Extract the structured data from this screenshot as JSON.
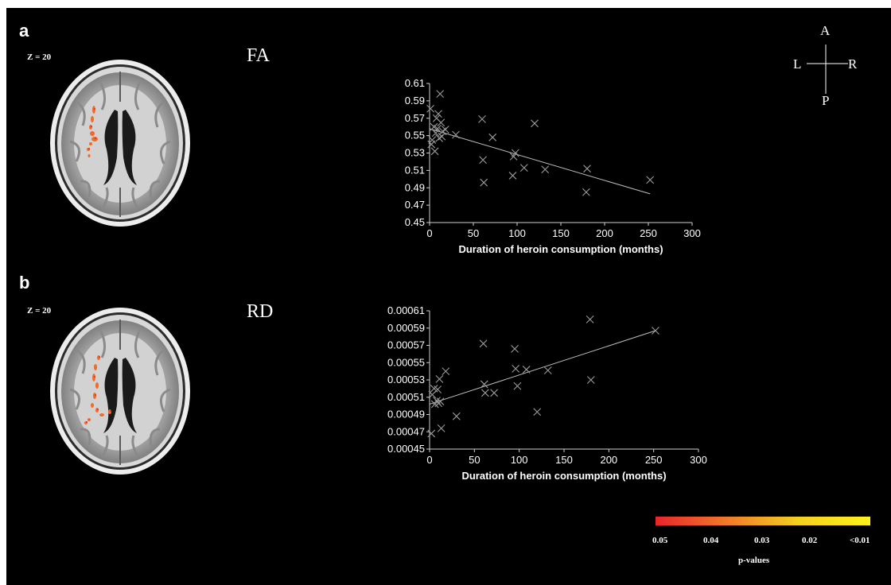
{
  "panels": [
    {
      "letter": "a",
      "slice_label": "Z = 20",
      "metric": "FA"
    },
    {
      "letter": "b",
      "slice_label": "Z = 20",
      "metric": "RD"
    }
  ],
  "orientation": {
    "anterior": "A",
    "posterior": "P",
    "left": "L",
    "right": "R"
  },
  "colorbar": {
    "ticks": [
      "0.05",
      "0.04",
      "0.03",
      "0.02",
      "<0.01"
    ],
    "label": "p-values",
    "colors": [
      "#e8252a",
      "#f07a2a",
      "#f5d020",
      "#fff31a"
    ]
  },
  "chart_data": [
    {
      "type": "scatter",
      "title": "",
      "xlabel": "Duration of heroin consumption (months)",
      "ylabel": "",
      "xlim": [
        0,
        300
      ],
      "ylim": [
        0.45,
        0.61
      ],
      "xticks": [
        "0",
        "50",
        "100",
        "150",
        "200",
        "250",
        "300"
      ],
      "yticks": [
        "0.45",
        "0.47",
        "0.49",
        "0.51",
        "0.53",
        "0.55",
        "0.57",
        "0.59",
        "0.61"
      ],
      "grid": false,
      "marker": "x",
      "points": [
        [
          1,
          0.581
        ],
        [
          2,
          0.54
        ],
        [
          3,
          0.545
        ],
        [
          5,
          0.56
        ],
        [
          6,
          0.532
        ],
        [
          7,
          0.553
        ],
        [
          8,
          0.57
        ],
        [
          9,
          0.558
        ],
        [
          10,
          0.575
        ],
        [
          11,
          0.547
        ],
        [
          12,
          0.598
        ],
        [
          13,
          0.565
        ],
        [
          14,
          0.549
        ],
        [
          15,
          0.555
        ],
        [
          18,
          0.557
        ],
        [
          30,
          0.551
        ],
        [
          60,
          0.569
        ],
        [
          61,
          0.522
        ],
        [
          62,
          0.496
        ],
        [
          72,
          0.548
        ],
        [
          95,
          0.504
        ],
        [
          96,
          0.526
        ],
        [
          98,
          0.53
        ],
        [
          108,
          0.513
        ],
        [
          120,
          0.564
        ],
        [
          132,
          0.511
        ],
        [
          179,
          0.485
        ],
        [
          180,
          0.512
        ],
        [
          252,
          0.499
        ]
      ],
      "trendline": {
        "x": [
          0,
          252
        ],
        "y": [
          0.558,
          0.483
        ]
      }
    },
    {
      "type": "scatter",
      "title": "",
      "xlabel": "Duration of heroin consumption (months)",
      "ylabel": "",
      "xlim": [
        0,
        300
      ],
      "ylim": [
        0.00045,
        0.00061
      ],
      "xticks": [
        "0",
        "50",
        "100",
        "150",
        "200",
        "250",
        "300"
      ],
      "yticks": [
        "0.00045",
        "0.00047",
        "0.00049",
        "0.00051",
        "0.00053",
        "0.00055",
        "0.00057",
        "0.00059",
        "0.00061"
      ],
      "grid": false,
      "marker": "x",
      "points": [
        [
          2,
          0.000468
        ],
        [
          3,
          0.000513
        ],
        [
          5,
          0.00052
        ],
        [
          6,
          0.000502
        ],
        [
          8,
          0.000506
        ],
        [
          9,
          0.000519
        ],
        [
          10,
          0.000503
        ],
        [
          11,
          0.000531
        ],
        [
          12,
          0.000505
        ],
        [
          13,
          0.000474
        ],
        [
          18,
          0.00054
        ],
        [
          30,
          0.000488
        ],
        [
          60,
          0.000572
        ],
        [
          61,
          0.000525
        ],
        [
          62,
          0.000515
        ],
        [
          72,
          0.000515
        ],
        [
          95,
          0.000566
        ],
        [
          96,
          0.000543
        ],
        [
          98,
          0.000523
        ],
        [
          108,
          0.000542
        ],
        [
          120,
          0.000493
        ],
        [
          132,
          0.000541
        ],
        [
          179,
          0.0006
        ],
        [
          180,
          0.00053
        ],
        [
          252,
          0.000587
        ]
      ],
      "trendline": {
        "x": [
          0,
          252
        ],
        "y": [
          0.000502,
          0.000587
        ]
      }
    }
  ]
}
